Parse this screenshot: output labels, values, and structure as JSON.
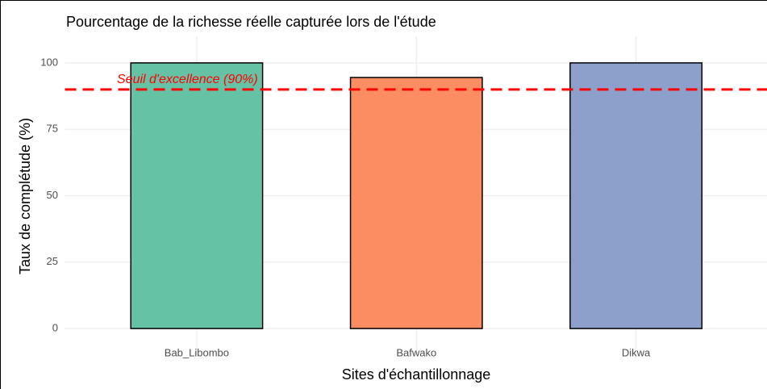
{
  "chart_data": {
    "type": "bar",
    "title": "Pourcentage de la richesse réelle capturée lors de l'étude",
    "x_label": "Sites d'échantillonnage",
    "y_label": "Taux de complétude (%)",
    "categories": [
      "Bab_Libombo",
      "Bafwako",
      "Dikwa"
    ],
    "values": [
      100,
      94.5,
      100
    ],
    "colors": [
      "#66c2a5",
      "#fc8d62",
      "#8da0cb"
    ],
    "threshold": {
      "value": 90,
      "label": "Seuil d'excellence (90%)",
      "color": "#ff0000"
    },
    "ylim": [
      -10,
      110
    ],
    "yticks": [
      0,
      25,
      50,
      75,
      100
    ],
    "grid": true
  }
}
